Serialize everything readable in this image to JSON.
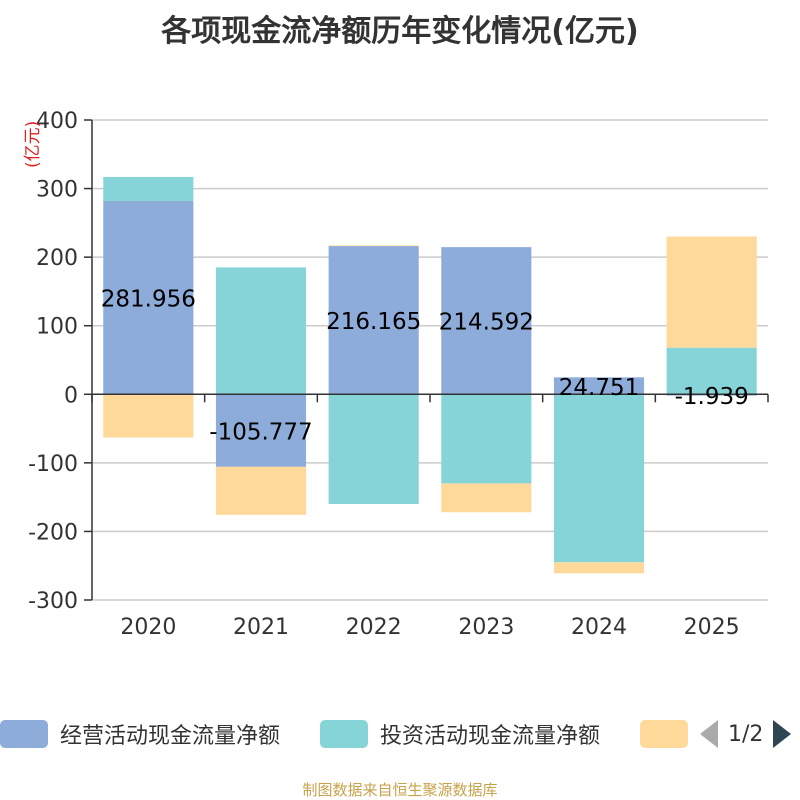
{
  "chart_data": {
    "type": "bar",
    "stacked": true,
    "title": "各项现金流净额历年变化情况(亿元)",
    "ylabel": "(亿元)",
    "categories": [
      "2020",
      "2021",
      "2022",
      "2023",
      "2024",
      "2025"
    ],
    "ylim": [
      -300,
      400
    ],
    "yticks": [
      400,
      300,
      200,
      100,
      0,
      -100,
      -200,
      -300
    ],
    "grid": true,
    "legend_position": "bottom",
    "series": [
      {
        "name": "经营活动现金流量净额",
        "color": "#8eacda",
        "values": [
          281.956,
          -105.777,
          216.165,
          214.592,
          24.751,
          -1.939
        ],
        "labels": [
          "281.956",
          "-105.777",
          "216.165",
          "214.592",
          "24.751",
          "-1.939"
        ]
      },
      {
        "name": "投资活动现金流量净额",
        "color": "#86d4d8",
        "values": [
          35,
          185,
          -160,
          -130,
          -245,
          68
        ]
      },
      {
        "name": "",
        "color": "#ffd99a",
        "values": [
          -63,
          -70,
          1,
          -42,
          -16,
          162
        ]
      }
    ]
  },
  "legend": {
    "page": "1/2"
  },
  "footer": "制图数据来自恒生聚源数据库"
}
